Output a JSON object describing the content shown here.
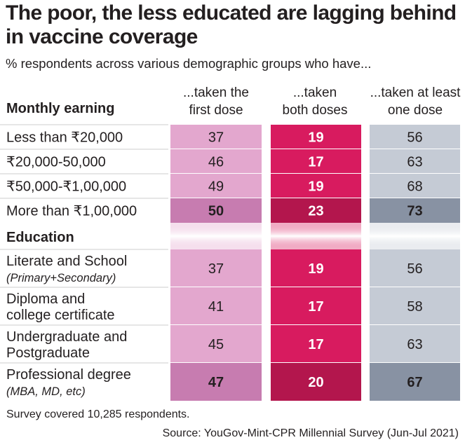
{
  "title": "The poor, the less educated are lagging behind in vaccine coverage",
  "subtitle": "% respondents across various demographic groups who have...",
  "columns": [
    {
      "line1": "...taken the",
      "line2": "first dose"
    },
    {
      "line1": "...taken",
      "line2": "both doses"
    },
    {
      "line1": "...taken at least",
      "line2": "one dose"
    }
  ],
  "colors": {
    "first_dose": "#e3a7ce",
    "first_dose_highlight": "#c77cb0",
    "both_doses": "#d81b5f",
    "both_doses_highlight": "#b3164d",
    "at_least_one": "#c5cbd5",
    "at_least_one_highlight": "#8892a3",
    "row_separator": "#ffffff"
  },
  "chart_data": {
    "type": "table",
    "groups": [
      {
        "name": "Monthly earning",
        "rows": [
          {
            "label": "Less than ₹20,000",
            "sublabel": "",
            "values": [
              37,
              19,
              56
            ],
            "bold": false
          },
          {
            "label": "₹20,000-50,000",
            "sublabel": "",
            "values": [
              46,
              17,
              63
            ],
            "bold": false
          },
          {
            "label": "₹50,000-₹1,00,000",
            "sublabel": "",
            "values": [
              49,
              19,
              68
            ],
            "bold": false
          },
          {
            "label": "More than ₹1,00,000",
            "sublabel": "",
            "values": [
              50,
              23,
              73
            ],
            "bold": true
          }
        ]
      },
      {
        "name": "Education",
        "rows": [
          {
            "label": "Literate and School",
            "sublabel": "(Primary+Secondary)",
            "values": [
              37,
              19,
              56
            ],
            "bold": false
          },
          {
            "label": "Diploma and",
            "sublabel": "college certificate",
            "sublabel_italic": false,
            "values": [
              41,
              17,
              58
            ],
            "bold": false
          },
          {
            "label": "Undergraduate and",
            "sublabel": "Postgraduate",
            "sublabel_italic": false,
            "values": [
              45,
              17,
              63
            ],
            "bold": false
          },
          {
            "label": "Professional degree",
            "sublabel": "(MBA, MD, etc)",
            "values": [
              47,
              20,
              67
            ],
            "bold": true
          }
        ]
      }
    ]
  },
  "note": "Survey covered 10,285 respondents.",
  "source": "Source: YouGov-Mint-CPR Millennial Survey (Jun-Jul 2021)"
}
